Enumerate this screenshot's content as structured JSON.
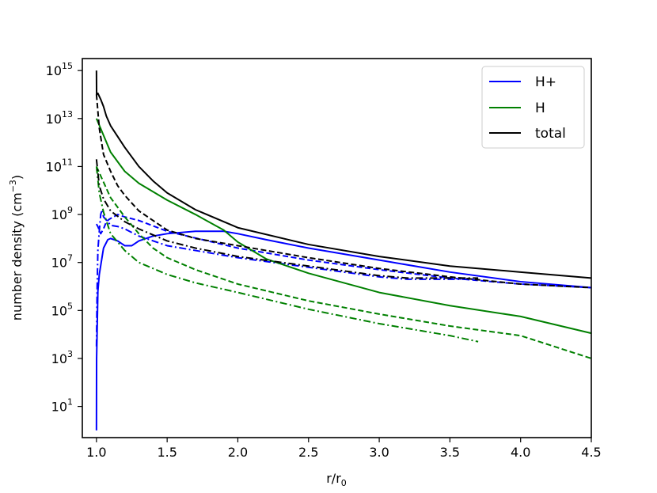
{
  "chart_data": {
    "type": "line",
    "xlabel": "r/r",
    "xlabel_sub": "0",
    "ylabel": "number density (cm",
    "ylabel_sup": "−3",
    "ylabel_close": ")",
    "xlim": [
      0.9,
      4.5
    ],
    "ylim_log10": [
      -0.3,
      15.5
    ],
    "yscale": "log",
    "x_ticks": [
      1.0,
      1.5,
      2.0,
      2.5,
      3.0,
      3.5,
      4.0,
      4.5
    ],
    "x_tick_labels": [
      "1.0",
      "1.5",
      "2.0",
      "2.5",
      "3.0",
      "3.5",
      "4.0",
      "4.5"
    ],
    "y_ticks_log10": [
      1,
      3,
      5,
      7,
      9,
      11,
      13,
      15
    ],
    "y_tick_base": "10",
    "y_tick_exponents": [
      "1",
      "3",
      "5",
      "7",
      "9",
      "11",
      "13",
      "15"
    ],
    "legend_position": "top-right",
    "legend": [
      {
        "label": "H+",
        "color": "#0000ff"
      },
      {
        "label": "H",
        "color": "#008000"
      },
      {
        "label": "total",
        "color": "#000000"
      }
    ],
    "series": [
      {
        "name": "H+",
        "style": "solid",
        "color": "#0000ff",
        "x": [
          1.0,
          1.001,
          1.01,
          1.02,
          1.05,
          1.08,
          1.1,
          1.15,
          1.2,
          1.25,
          1.3,
          1.4,
          1.5,
          1.7,
          1.9,
          2.0,
          2.2,
          2.5,
          3.0,
          3.5,
          4.0,
          4.5
        ],
        "log10y": [
          0.0,
          3.0,
          5.8,
          6.5,
          7.6,
          7.95,
          8.0,
          7.9,
          7.7,
          7.7,
          7.9,
          8.1,
          8.2,
          8.3,
          8.3,
          8.2,
          7.95,
          7.6,
          7.1,
          6.6,
          6.2,
          5.95
        ]
      },
      {
        "name": "H+ (dashed)",
        "style": "dashed",
        "color": "#0000ff",
        "x": [
          1.0,
          1.01,
          1.03,
          1.05,
          1.07,
          1.09,
          1.12,
          1.15,
          1.2,
          1.3,
          1.5,
          2.0,
          2.5,
          3.0,
          3.5,
          4.0,
          4.5
        ],
        "log10y": [
          8.6,
          8.5,
          8.2,
          8.4,
          8.7,
          8.8,
          8.9,
          9.0,
          8.9,
          8.75,
          8.3,
          7.6,
          7.1,
          6.7,
          6.35,
          6.1,
          5.95
        ]
      },
      {
        "name": "H+ (dash-dot)",
        "style": "dashdot",
        "color": "#0000ff",
        "x": [
          1.0,
          1.005,
          1.01,
          1.02,
          1.03,
          1.04,
          1.05,
          1.08,
          1.1,
          1.15,
          1.2,
          1.3,
          1.5,
          2.0,
          2.5,
          3.0,
          3.2,
          3.5,
          3.7
        ],
        "log10y": [
          3.5,
          6.0,
          7.5,
          8.3,
          9.0,
          9.2,
          8.9,
          8.7,
          8.55,
          8.5,
          8.4,
          8.1,
          7.7,
          7.2,
          6.8,
          6.4,
          6.3,
          6.3,
          6.3
        ]
      },
      {
        "name": "H",
        "style": "solid",
        "color": "#008000",
        "x": [
          1.0,
          1.1,
          1.2,
          1.3,
          1.4,
          1.5,
          1.7,
          1.9,
          2.0,
          2.2,
          2.5,
          3.0,
          3.5,
          4.0,
          4.5
        ],
        "log10y": [
          13.0,
          11.6,
          10.8,
          10.3,
          9.95,
          9.6,
          9.0,
          8.35,
          7.85,
          7.15,
          6.55,
          5.75,
          5.2,
          4.75,
          4.05
        ]
      },
      {
        "name": "H (dashed)",
        "style": "dashed",
        "color": "#008000",
        "x": [
          1.0,
          1.1,
          1.2,
          1.3,
          1.4,
          1.5,
          1.7,
          2.0,
          2.5,
          3.0,
          3.5,
          4.0,
          4.5
        ],
        "log10y": [
          11.0,
          9.7,
          8.9,
          8.2,
          7.6,
          7.2,
          6.7,
          6.1,
          5.4,
          4.85,
          4.35,
          3.95,
          3.0
        ]
      },
      {
        "name": "H (dash-dot)",
        "style": "dashdot",
        "color": "#008000",
        "x": [
          1.0,
          1.02,
          1.05,
          1.1,
          1.2,
          1.3,
          1.5,
          1.7,
          2.0,
          2.5,
          3.0,
          3.5,
          3.7
        ],
        "log10y": [
          11.0,
          9.9,
          9.1,
          8.2,
          7.5,
          7.0,
          6.5,
          6.15,
          5.75,
          5.05,
          4.45,
          3.95,
          3.7
        ]
      },
      {
        "name": "total",
        "style": "solid",
        "color": "#000000",
        "x": [
          1.0,
          1.001,
          1.01,
          1.03,
          1.05,
          1.07,
          1.1,
          1.2,
          1.3,
          1.4,
          1.5,
          1.7,
          2.0,
          2.5,
          3.0,
          3.5,
          4.0,
          4.5
        ],
        "log10y": [
          15.0,
          14.0,
          14.05,
          13.8,
          13.5,
          13.1,
          12.7,
          11.8,
          11.0,
          10.4,
          9.9,
          9.2,
          8.45,
          7.75,
          7.25,
          6.85,
          6.6,
          6.35
        ]
      },
      {
        "name": "total (dashed)",
        "style": "dashed",
        "color": "#000000",
        "x": [
          1.0,
          1.02,
          1.05,
          1.1,
          1.15,
          1.2,
          1.3,
          1.5,
          1.7,
          2.0,
          2.5,
          3.0,
          3.5,
          4.0,
          4.5
        ],
        "log10y": [
          14.0,
          12.6,
          11.5,
          10.8,
          10.2,
          9.8,
          9.15,
          8.35,
          8.0,
          7.7,
          7.2,
          6.75,
          6.4,
          6.1,
          5.95
        ]
      },
      {
        "name": "total (dash-dot)",
        "style": "dashdot",
        "color": "#000000",
        "x": [
          1.0,
          1.02,
          1.05,
          1.1,
          1.2,
          1.3,
          1.5,
          1.7,
          2.0,
          2.5,
          3.0,
          3.2,
          3.5,
          3.7
        ],
        "log10y": [
          11.3,
          10.2,
          9.65,
          9.15,
          8.7,
          8.4,
          7.9,
          7.6,
          7.25,
          6.85,
          6.45,
          6.35,
          6.35,
          6.35
        ]
      }
    ]
  }
}
